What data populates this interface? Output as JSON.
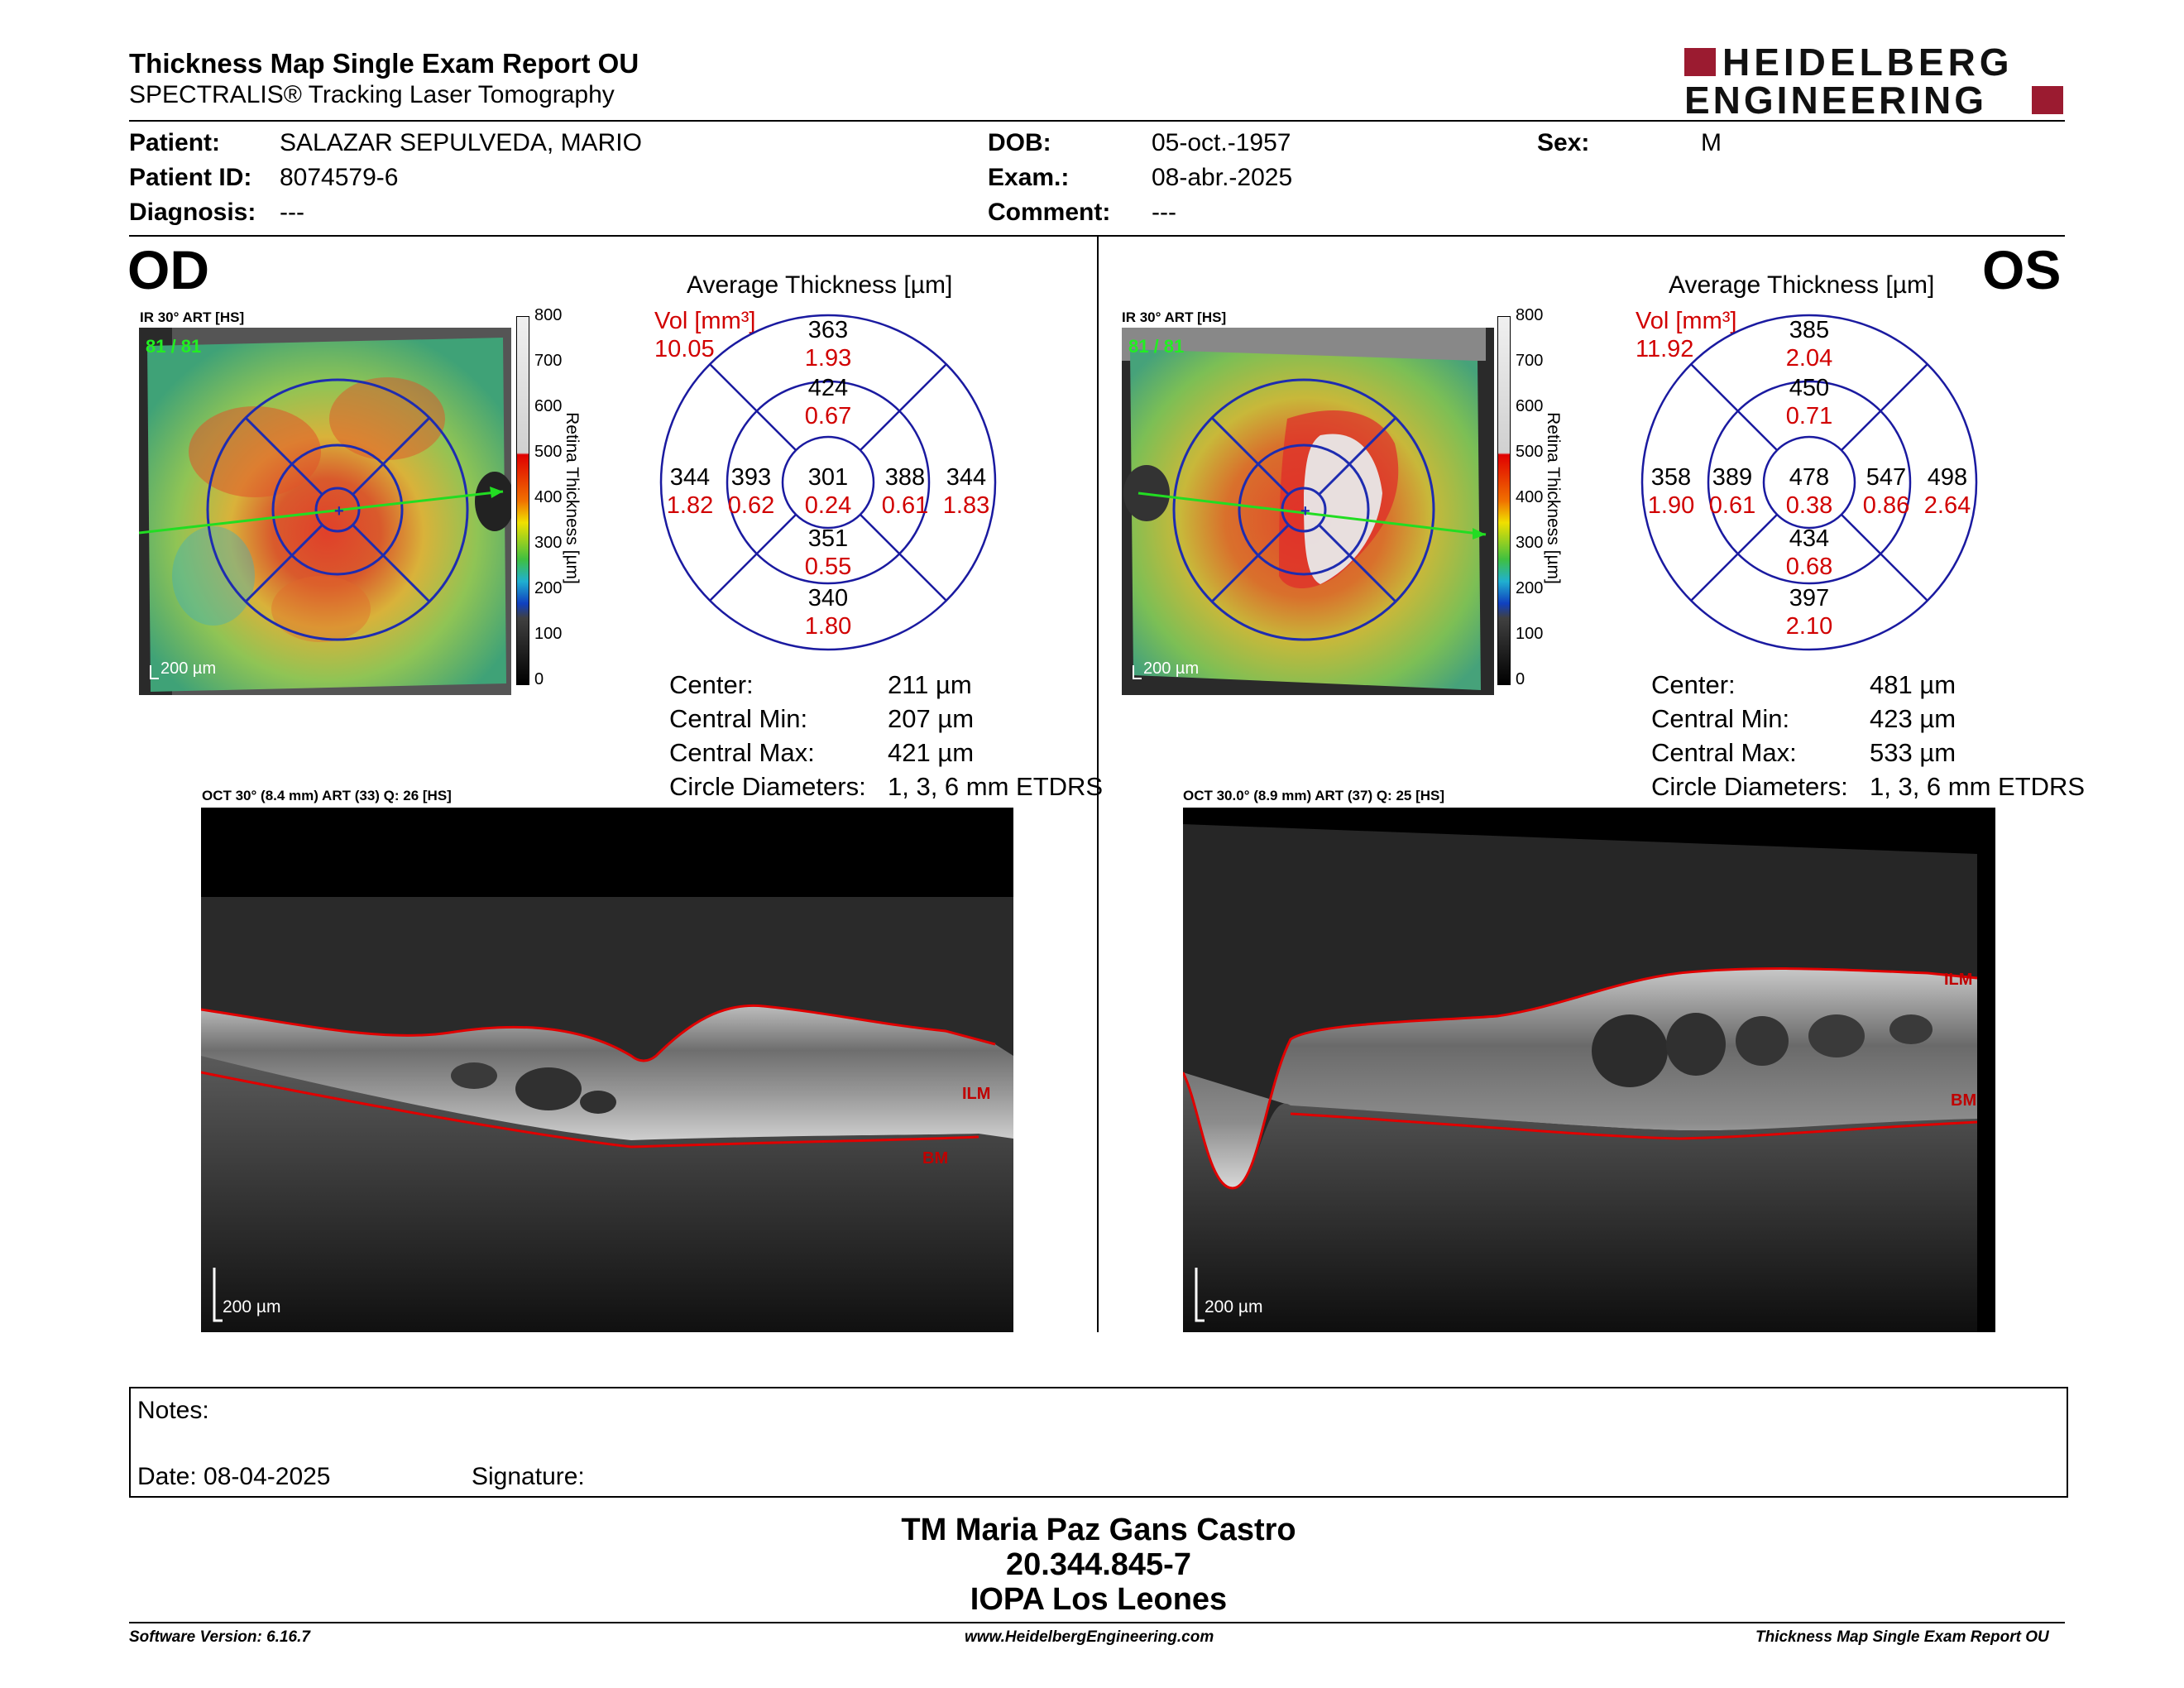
{
  "header": {
    "title": "Thickness Map Single Exam Report OU",
    "subtitle": "SPECTRALIS® Tracking Laser Tomography",
    "logo_line1": "HEIDELBERG",
    "logo_line2": "ENGINEERING",
    "brand_color": "#9b1b30"
  },
  "patient": {
    "patient_label": "Patient:",
    "patient_value": "SALAZAR SEPULVEDA, MARIO",
    "id_label": "Patient ID:",
    "id_value": "8074579-6",
    "diagnosis_label": "Diagnosis:",
    "diagnosis_value": "---",
    "dob_label": "DOB:",
    "dob_value": "05-oct.-1957",
    "exam_label": "Exam.:",
    "exam_value": "08-abr.-2025",
    "comment_label": "Comment:",
    "comment_value": "---",
    "sex_label": "Sex:",
    "sex_value": "M"
  },
  "od": {
    "eye": "OD",
    "ir_label": "IR 30° ART [HS]",
    "frames": "81 / 81",
    "scale_bar": "200 µm",
    "colorbar_ticks": [
      "800",
      "700",
      "600",
      "500",
      "400",
      "300",
      "200",
      "100",
      "0"
    ],
    "colorbar_title": "Retina  Thickness [µm]",
    "avg_title": "Average Thickness [µm]",
    "vol_label": "Vol [mm³]",
    "vol_total": "10.05",
    "grid": {
      "center": {
        "t": "301",
        "v": "0.24"
      },
      "inner_sup": {
        "t": "424",
        "v": "0.67"
      },
      "inner_inf": {
        "t": "351",
        "v": "0.55"
      },
      "inner_left": {
        "t": "393",
        "v": "0.62"
      },
      "inner_right": {
        "t": "388",
        "v": "0.61"
      },
      "outer_sup": {
        "t": "363",
        "v": "1.93"
      },
      "outer_inf": {
        "t": "340",
        "v": "1.80"
      },
      "outer_left": {
        "t": "344",
        "v": "1.82"
      },
      "outer_right": {
        "t": "344",
        "v": "1.83"
      }
    },
    "stats": {
      "center_label": "Center:",
      "center_value": "211 µm",
      "min_label": "Central Min:",
      "min_value": "207 µm",
      "max_label": "Central Max:",
      "max_value": "421 µm",
      "diam_label": "Circle Diameters:",
      "diam_value": "1, 3, 6 mm ETDRS"
    },
    "oct_label": "OCT 30° (8.4 mm) ART (33) Q: 26 [HS]",
    "ilm_label": "ILM",
    "bm_label": "BM",
    "oct_scale": "200 µm"
  },
  "os": {
    "eye": "OS",
    "ir_label": "IR 30° ART [HS]",
    "frames": "81 / 81",
    "scale_bar": "200 µm",
    "colorbar_ticks": [
      "800",
      "700",
      "600",
      "500",
      "400",
      "300",
      "200",
      "100",
      "0"
    ],
    "colorbar_title": "Retina  Thickness [µm]",
    "avg_title": "Average Thickness [µm]",
    "vol_label": "Vol [mm³]",
    "vol_total": "11.92",
    "grid": {
      "center": {
        "t": "478",
        "v": "0.38"
      },
      "inner_sup": {
        "t": "450",
        "v": "0.71"
      },
      "inner_inf": {
        "t": "434",
        "v": "0.68"
      },
      "inner_left": {
        "t": "389",
        "v": "0.61"
      },
      "inner_right": {
        "t": "547",
        "v": "0.86"
      },
      "outer_sup": {
        "t": "385",
        "v": "2.04"
      },
      "outer_inf": {
        "t": "397",
        "v": "2.10"
      },
      "outer_left": {
        "t": "358",
        "v": "1.90"
      },
      "outer_right": {
        "t": "498",
        "v": "2.64"
      }
    },
    "stats": {
      "center_label": "Center:",
      "center_value": "481 µm",
      "min_label": "Central Min:",
      "min_value": "423 µm",
      "max_label": "Central Max:",
      "max_value": "533 µm",
      "diam_label": "Circle Diameters:",
      "diam_value": "1, 3, 6 mm ETDRS"
    },
    "oct_label": "OCT 30.0° (8.9 mm) ART (37) Q: 25 [HS]",
    "ilm_label": "ILM",
    "bm_label": "BM",
    "oct_scale": "200 µm"
  },
  "notes": {
    "notes_label": "Notes:",
    "date_label": "Date: 08-04-2025",
    "signature_label": "Signature:"
  },
  "signer": {
    "name": "TM Maria Paz Gans Castro",
    "id": "20.344.845-7",
    "org": "IOPA Los Leones"
  },
  "footer": {
    "software": "Software Version: 6.16.7",
    "website": "www.HeidelbergEngineering.com",
    "report": "Thickness Map Single Exam Report OU"
  }
}
